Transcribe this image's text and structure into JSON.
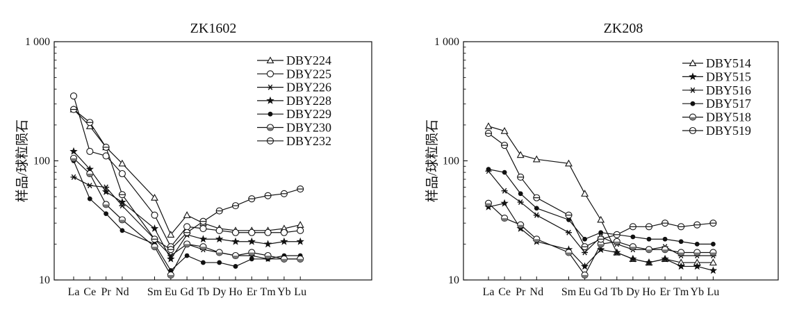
{
  "chart_data": [
    {
      "type": "line",
      "title": "ZK1602",
      "ylabel": "样品/球粒陨石",
      "xlabel": "",
      "yscale": "log",
      "ylim": [
        10,
        1000
      ],
      "yticks": [
        "10",
        "100",
        "1 000"
      ],
      "grid": false,
      "legend_position": "top-right",
      "categories": [
        "La",
        "Ce",
        "Pr",
        "Nd",
        "Sm",
        "Eu",
        "Gd",
        "Tb",
        "Dy",
        "Ho",
        "Er",
        "Tm",
        "Yb",
        "Lu"
      ],
      "series": [
        {
          "name": "DBY224",
          "marker": "triangle",
          "values": [
            270,
            195,
            130,
            95,
            49,
            24,
            35,
            30,
            27,
            26,
            26,
            26,
            27,
            29
          ]
        },
        {
          "name": "DBY225",
          "marker": "circle-open",
          "values": [
            350,
            120,
            110,
            78,
            35,
            19,
            28,
            27,
            26,
            25,
            25,
            25,
            25,
            26
          ]
        },
        {
          "name": "DBY226",
          "marker": "asterisk",
          "values": [
            73,
            62,
            60,
            42,
            22,
            16,
            20,
            18,
            17,
            16,
            16,
            15,
            15,
            15
          ]
        },
        {
          "name": "DBY228",
          "marker": "star",
          "values": [
            120,
            85,
            55,
            45,
            27,
            15,
            24,
            22,
            22,
            21,
            21,
            20,
            21,
            21
          ]
        },
        {
          "name": "DBY229",
          "marker": "dot",
          "values": [
            100,
            48,
            36,
            26,
            20,
            12,
            16,
            14,
            14,
            13,
            15,
            15,
            16,
            16
          ]
        },
        {
          "name": "DBY230",
          "marker": "circle-half",
          "values": [
            105,
            78,
            43,
            32,
            19,
            11,
            20,
            19,
            17,
            16,
            17,
            16,
            15,
            15
          ]
        },
        {
          "name": "DBY232",
          "marker": "circle-bar",
          "values": [
            270,
            210,
            130,
            52,
            22,
            18,
            25,
            31,
            38,
            42,
            48,
            51,
            53,
            58
          ]
        }
      ]
    },
    {
      "type": "line",
      "title": "ZK208",
      "ylabel": "样品/球粒陨石",
      "xlabel": "",
      "yscale": "log",
      "ylim": [
        10,
        1000
      ],
      "yticks": [
        "10",
        "100",
        "1 000"
      ],
      "grid": false,
      "legend_position": "top-right",
      "categories": [
        "La",
        "Ce",
        "Pr",
        "Nd",
        "Sm",
        "Eu",
        "Gd",
        "Tb",
        "Dy",
        "Ho",
        "Er",
        "Tm",
        "Yb",
        "Lu"
      ],
      "series": [
        {
          "name": "DBY514",
          "marker": "triangle",
          "values": [
            195,
            178,
            112,
            103,
            95,
            53,
            32,
            17,
            15,
            14,
            15,
            14,
            14,
            14
          ]
        },
        {
          "name": "DBY515",
          "marker": "star",
          "values": [
            41,
            44,
            27,
            21,
            18,
            13,
            18,
            17,
            15,
            14,
            15,
            13,
            13,
            12
          ]
        },
        {
          "name": "DBY516",
          "marker": "asterisk",
          "values": [
            82,
            56,
            45,
            35,
            25,
            17,
            23,
            20,
            18,
            18,
            19,
            16,
            16,
            16
          ]
        },
        {
          "name": "DBY517",
          "marker": "dot",
          "values": [
            85,
            80,
            53,
            40,
            32,
            22,
            25,
            24,
            23,
            22,
            22,
            21,
            20,
            20
          ]
        },
        {
          "name": "DBY518",
          "marker": "circle-half",
          "values": [
            44,
            33,
            29,
            22,
            17,
            11,
            20,
            21,
            19,
            18,
            18,
            17,
            17,
            17
          ]
        },
        {
          "name": "DBY519",
          "marker": "circle-bar",
          "values": [
            170,
            135,
            73,
            49,
            35,
            19,
            22,
            24,
            28,
            28,
            30,
            28,
            29,
            30
          ]
        }
      ]
    }
  ]
}
